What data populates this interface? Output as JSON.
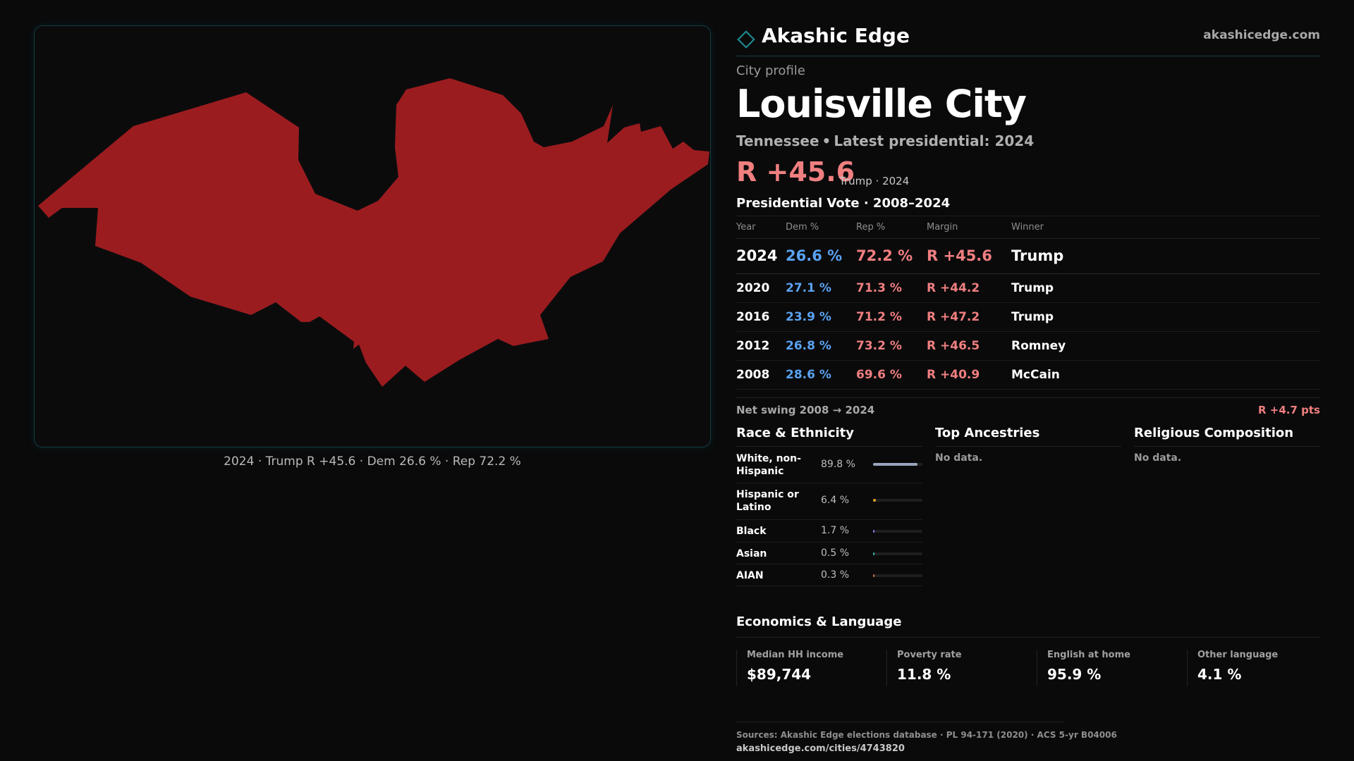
{
  "brand": {
    "name": "Akashic Edge",
    "url": "akashicedge.com"
  },
  "profile": {
    "kicker": "City profile",
    "title": "Louisville City",
    "state": "Tennessee",
    "latest": "Latest presidential: 2024",
    "margin": "R +45.6",
    "margin_note": "Trump · 2024"
  },
  "map": {
    "caption": "2024 · Trump R +45.6 · Dem 26.6 % · Rep 72.2 %",
    "fill_color": "#9b1c1f"
  },
  "vote": {
    "title": "Presidential Vote · 2008–2024",
    "headers": {
      "year": "Year",
      "dem": "Dem %",
      "rep": "Rep %",
      "margin": "Margin",
      "winner": "Winner"
    },
    "rows": [
      {
        "year": "2024",
        "dem": "26.6 %",
        "rep": "72.2 %",
        "margin": "R +45.6",
        "winner": "Trump"
      },
      {
        "year": "2020",
        "dem": "27.1 %",
        "rep": "71.3 %",
        "margin": "R +44.2",
        "winner": "Trump"
      },
      {
        "year": "2016",
        "dem": "23.9 %",
        "rep": "71.2 %",
        "margin": "R +47.2",
        "winner": "Trump"
      },
      {
        "year": "2012",
        "dem": "26.8 %",
        "rep": "73.2 %",
        "margin": "R +46.5",
        "winner": "Romney"
      },
      {
        "year": "2008",
        "dem": "28.6 %",
        "rep": "69.6 %",
        "margin": "R +40.9",
        "winner": "McCain"
      }
    ],
    "swing_label": "Net swing 2008 → 2024",
    "swing_value": "R +4.7 pts"
  },
  "race": {
    "title": "Race & Ethnicity",
    "rows": [
      {
        "name": "White, non-Hispanic",
        "pct": "89.8 %",
        "value": 89.8,
        "color": "#9aa6bd"
      },
      {
        "name": "Hispanic or Latino",
        "pct": "6.4 %",
        "value": 6.4,
        "color": "#e0a020"
      },
      {
        "name": "Black",
        "pct": "1.7 %",
        "value": 1.7,
        "color": "#8a78e0"
      },
      {
        "name": "Asian",
        "pct": "0.5 %",
        "value": 0.5,
        "color": "#3bb0a0"
      },
      {
        "name": "AIAN",
        "pct": "0.3 %",
        "value": 0.3,
        "color": "#d07040"
      }
    ]
  },
  "ancestries": {
    "title": "Top Ancestries",
    "empty": "No data."
  },
  "religion": {
    "title": "Religious Composition",
    "empty": "No data."
  },
  "economics": {
    "title": "Economics & Language",
    "cells": [
      {
        "label": "Median HH income",
        "value": "$89,744"
      },
      {
        "label": "Poverty rate",
        "value": "11.8 %"
      },
      {
        "label": "English at home",
        "value": "95.9 %"
      },
      {
        "label": "Other language",
        "value": "4.1 %"
      }
    ]
  },
  "footer": {
    "sources": "Sources: Akashic Edge elections database · PL 94-171 (2020) · ACS 5-yr B04006",
    "url": "akashicedge.com/cities/4743820"
  }
}
